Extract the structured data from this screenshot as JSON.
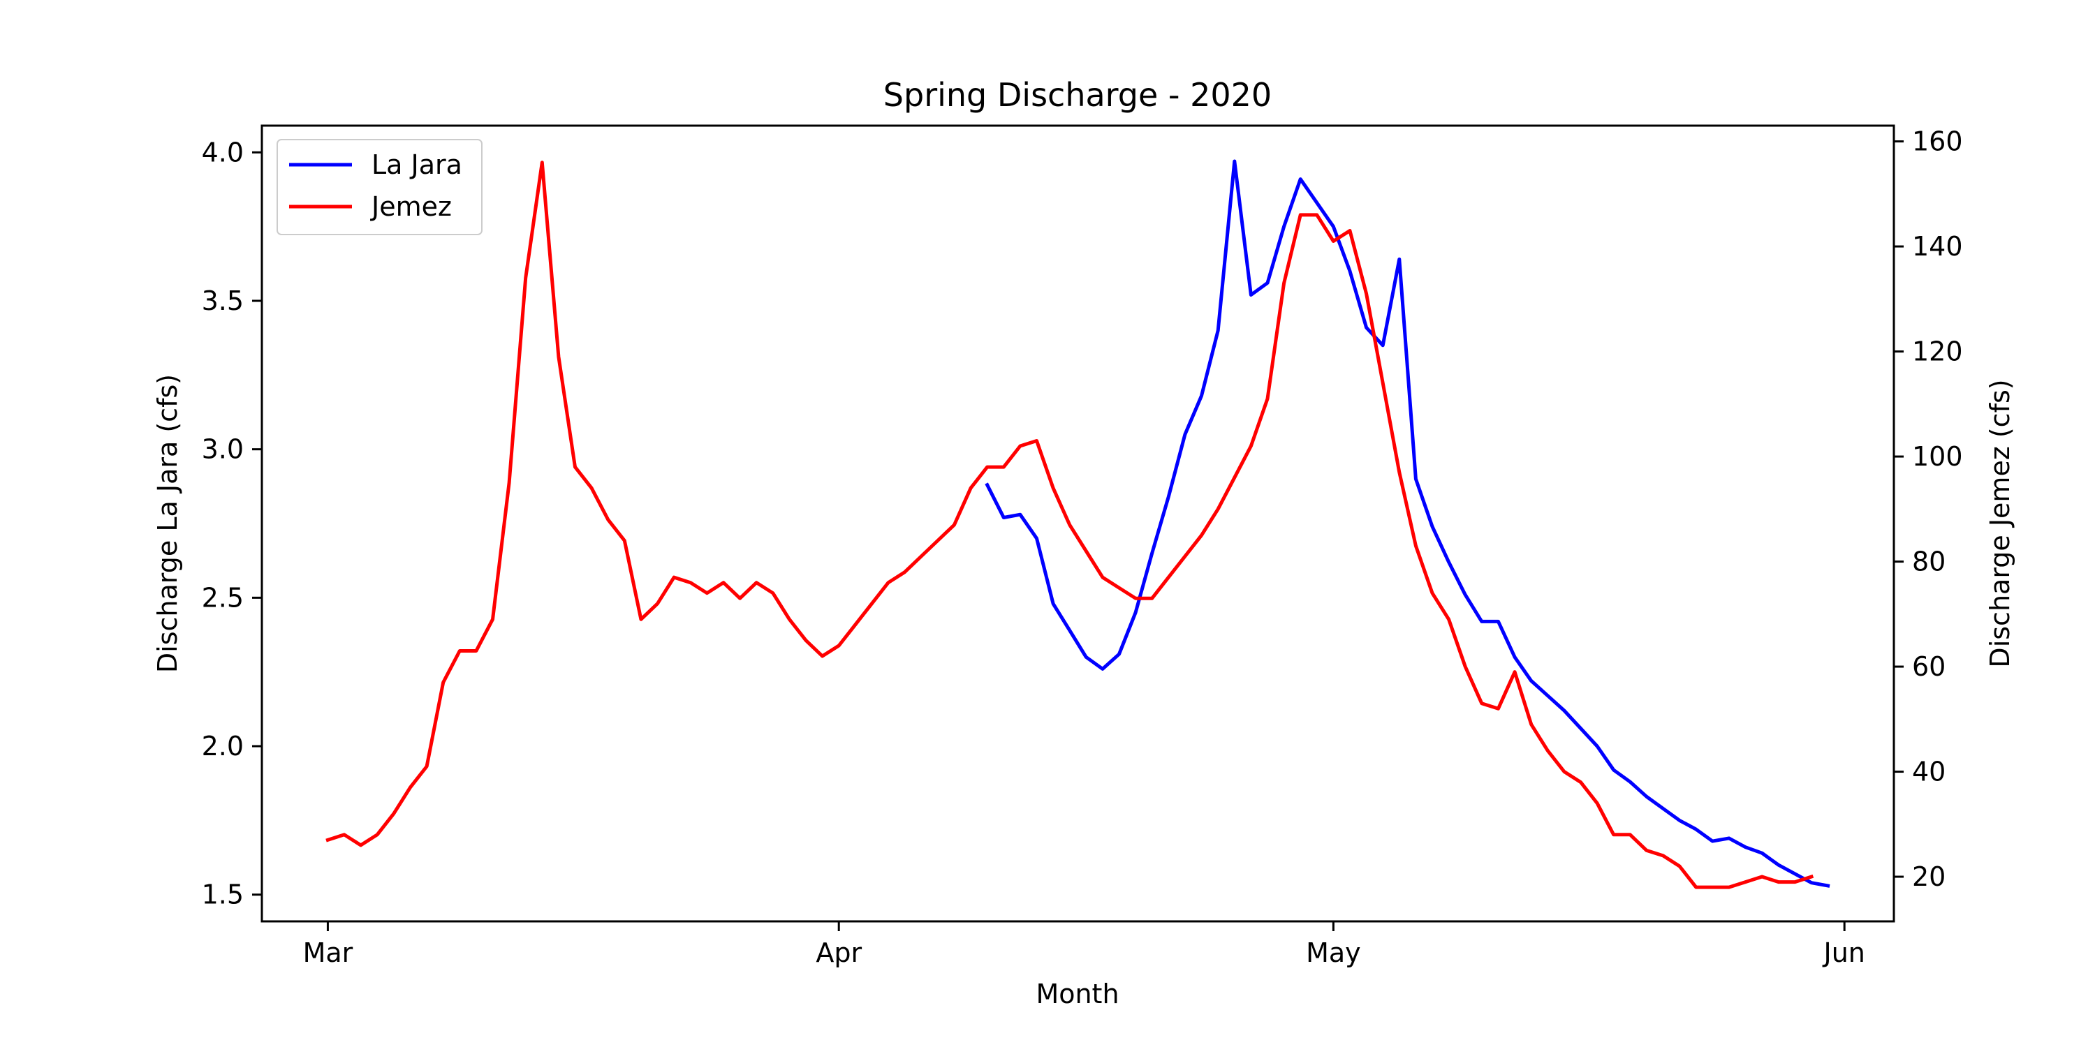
{
  "chart_data": {
    "type": "line",
    "title": "Spring Discharge - 2020",
    "xlabel": "Month",
    "ylabel_left": "Discharge La Jara (cfs)",
    "ylabel_right": "Discharge Jemez (cfs)",
    "x_ticks": [
      {
        "date": "2020-03-01",
        "label": "Mar"
      },
      {
        "date": "2020-04-01",
        "label": "Apr"
      },
      {
        "date": "2020-05-01",
        "label": "May"
      },
      {
        "date": "2020-06-01",
        "label": "Jun"
      }
    ],
    "xlim": [
      "2020-02-26",
      "2020-06-04"
    ],
    "ylim_left": [
      1.41,
      4.09
    ],
    "yticks_left": [
      "1.5",
      "2.0",
      "2.5",
      "3.0",
      "3.5",
      "4.0"
    ],
    "ylim_right": [
      11.5,
      163
    ],
    "yticks_right": [
      "20",
      "40",
      "60",
      "80",
      "100",
      "120",
      "140",
      "160"
    ],
    "grid": false,
    "legend_position": "top-left",
    "series": [
      {
        "name": "La Jara",
        "axis": "left",
        "color": "#0000ff",
        "start_date": "2020-04-10",
        "values": [
          2.88,
          2.77,
          2.78,
          2.7,
          2.48,
          2.39,
          2.3,
          2.26,
          2.31,
          2.45,
          2.65,
          2.84,
          3.05,
          3.18,
          3.4,
          3.97,
          3.52,
          3.56,
          3.75,
          3.91,
          3.83,
          3.75,
          3.6,
          3.41,
          3.35,
          3.64,
          2.9,
          2.74,
          2.62,
          2.51,
          2.42,
          2.42,
          2.3,
          2.22,
          2.17,
          2.12,
          2.06,
          2.0,
          1.92,
          1.88,
          1.83,
          1.79,
          1.75,
          1.72,
          1.68,
          1.69,
          1.66,
          1.64,
          1.6,
          1.57,
          1.54,
          1.53
        ]
      },
      {
        "name": "Jemez",
        "axis": "right",
        "color": "#ff0000",
        "start_date": "2020-03-01",
        "values": [
          27,
          28,
          26,
          28,
          32,
          37,
          41,
          57,
          63,
          63,
          69,
          95,
          134,
          156,
          119,
          98,
          94,
          88,
          84,
          69,
          72,
          77,
          76,
          74,
          76,
          73,
          76,
          74,
          69,
          65,
          62,
          64,
          68,
          72,
          76,
          78,
          81,
          84,
          87,
          94,
          98,
          98,
          102,
          103,
          94,
          87,
          82,
          77,
          75,
          73,
          73,
          77,
          81,
          85,
          90,
          96,
          102,
          111,
          133,
          146,
          146,
          141,
          143,
          131,
          114,
          97,
          83,
          74,
          69,
          60,
          53,
          52,
          59,
          49,
          44,
          40,
          38,
          34,
          28,
          28,
          25,
          24,
          22,
          18,
          18,
          18,
          19,
          20,
          19,
          19,
          20
        ]
      }
    ]
  }
}
